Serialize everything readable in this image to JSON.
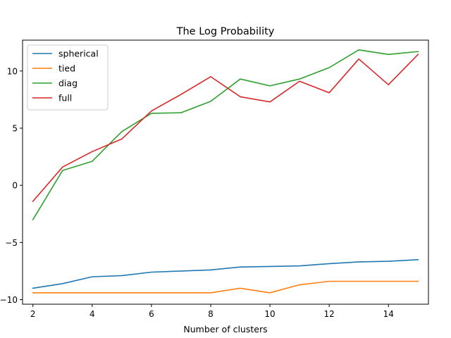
{
  "chart_data": {
    "type": "line",
    "title": "The Log Probability",
    "xlabel": "Number of clusters",
    "ylabel": "",
    "xlim": [
      1.65,
      15.35
    ],
    "ylim": [
      -10.4,
      12.7
    ],
    "xticks": [
      2,
      4,
      6,
      8,
      10,
      12,
      14
    ],
    "xtick_labels": [
      "2",
      "4",
      "6",
      "8",
      "10",
      "12",
      "14"
    ],
    "yticks": [
      -10,
      -5,
      0,
      5,
      10
    ],
    "ytick_labels": [
      "−10",
      "−5",
      "0",
      "5",
      "10"
    ],
    "grid": false,
    "legend_position": "upper-left",
    "x": [
      2,
      3,
      4,
      5,
      6,
      7,
      8,
      9,
      10,
      11,
      12,
      13,
      14,
      15
    ],
    "series": [
      {
        "name": "spherical",
        "color": "#1f77b4",
        "values": [
          -9.0,
          -8.6,
          -8.0,
          -7.9,
          -7.6,
          -7.5,
          -7.4,
          -7.15,
          -7.1,
          -7.05,
          -6.85,
          -6.7,
          -6.65,
          -6.5
        ]
      },
      {
        "name": "tied",
        "color": "#ff7f0e",
        "values": [
          -9.4,
          -9.4,
          -9.4,
          -9.4,
          -9.4,
          -9.4,
          -9.4,
          -9.0,
          -9.4,
          -8.7,
          -8.4,
          -8.4,
          -8.4,
          -8.4
        ]
      },
      {
        "name": "diag",
        "color": "#2ca02c",
        "values": [
          -3.0,
          1.3,
          2.1,
          4.7,
          6.3,
          6.35,
          7.35,
          9.3,
          8.7,
          9.3,
          10.3,
          11.85,
          11.45,
          11.7
        ]
      },
      {
        "name": "full",
        "color": "#d62728",
        "values": [
          -1.4,
          1.6,
          2.95,
          4.05,
          6.5,
          7.95,
          9.5,
          7.75,
          7.3,
          9.1,
          8.1,
          11.05,
          8.8,
          11.45
        ]
      }
    ]
  }
}
